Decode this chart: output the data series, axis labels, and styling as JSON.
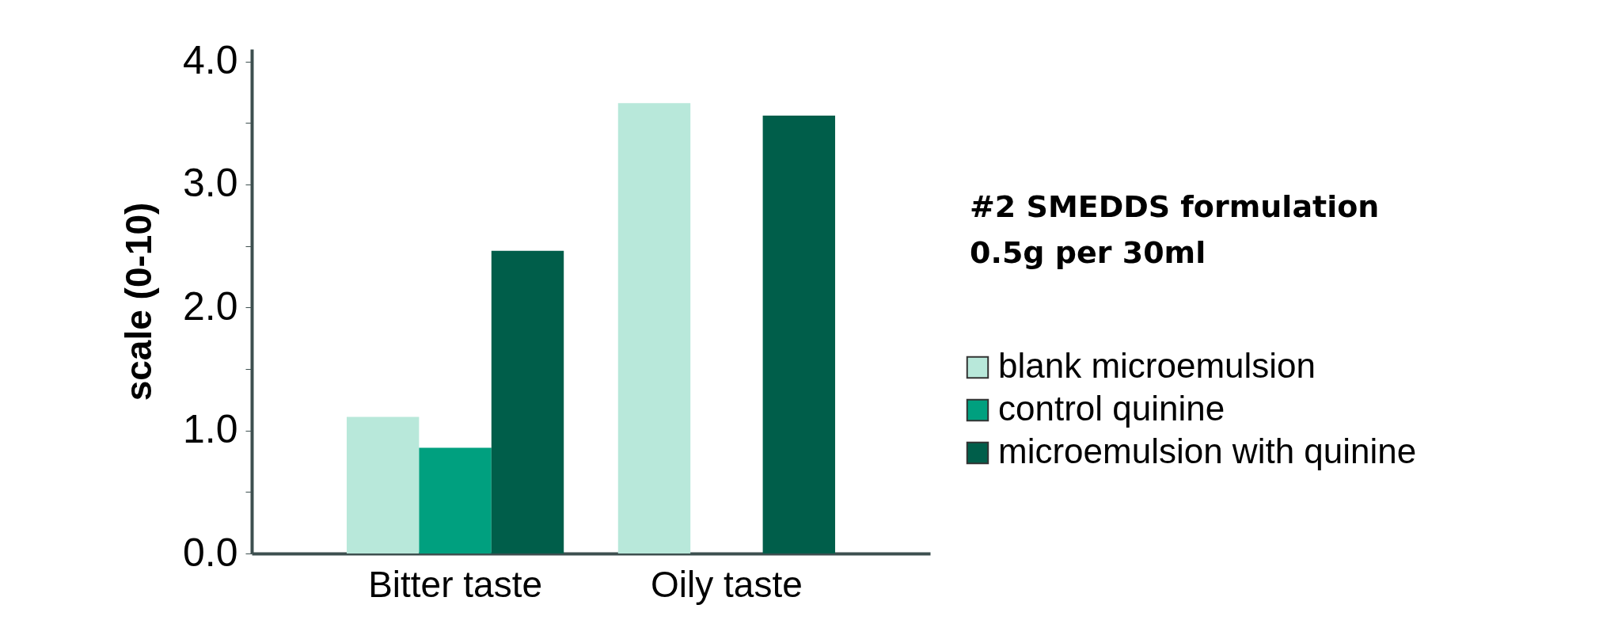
{
  "chart_data": {
    "type": "bar",
    "ylabel": "scale (0-10)",
    "categories": [
      "Bitter taste",
      "Oily taste"
    ],
    "series": [
      {
        "name": "blank microemulsion",
        "color": "#b8e8da",
        "values": [
          1.11,
          3.66
        ]
      },
      {
        "name": "control quinine",
        "color": "#00a07f",
        "values": [
          0.86,
          null
        ]
      },
      {
        "name": "microemulsion with quinine",
        "color": "#005e4a",
        "values": [
          2.46,
          3.56
        ]
      }
    ],
    "ylim": [
      0,
      4.1
    ],
    "yticks": [
      {
        "value": 0,
        "label": "0.0"
      },
      {
        "value": 0.5,
        "label": null
      },
      {
        "value": 1,
        "label": "1.0"
      },
      {
        "value": 1.5,
        "label": null
      },
      {
        "value": 2,
        "label": "2.0"
      },
      {
        "value": 2.5,
        "label": null
      },
      {
        "value": 3,
        "label": "3.0"
      },
      {
        "value": 3.5,
        "label": null
      },
      {
        "value": 4,
        "label": "4.0"
      }
    ],
    "annotations": [
      "#2 SMEDDS formulation",
      "0.5g per 30ml"
    ],
    "legend": "right",
    "grid": false
  }
}
